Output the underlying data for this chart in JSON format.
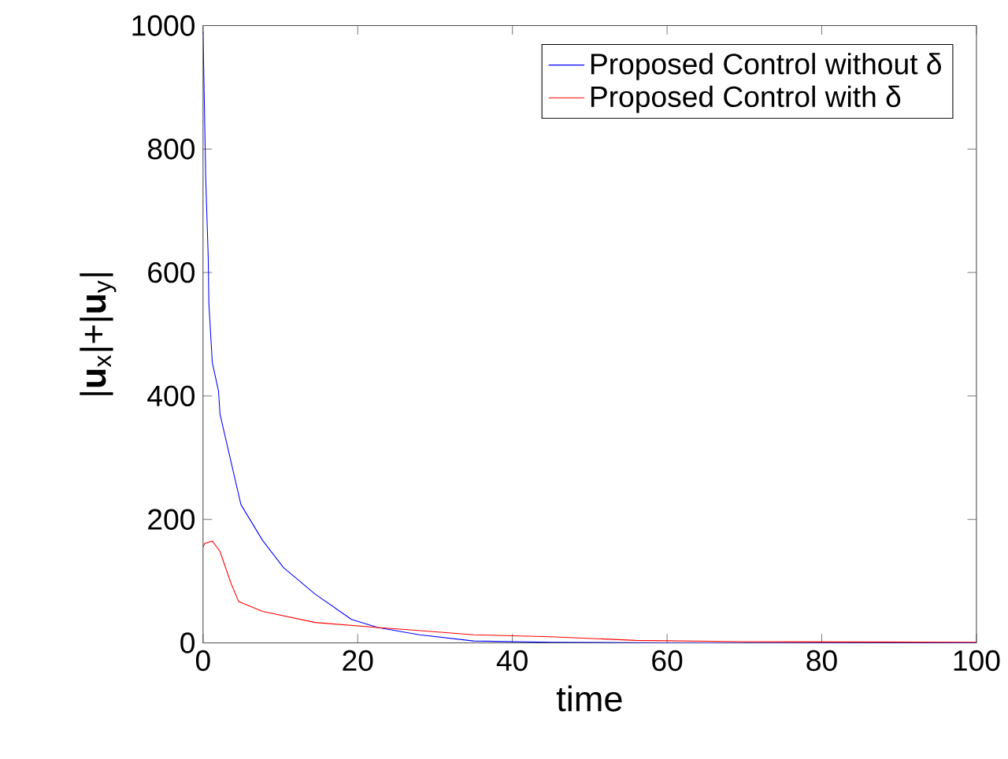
{
  "chart_data": {
    "type": "line",
    "xlabel": "time",
    "ylabel": "|**u**$_{x}$|+|**u**$_{y}$|",
    "xlim": [
      0,
      100
    ],
    "ylim": [
      0,
      1000
    ],
    "xticks": [
      0,
      20,
      40,
      60,
      80,
      100
    ],
    "yticks": [
      0,
      200,
      400,
      600,
      800,
      1000
    ],
    "legend": "top right",
    "grid": false,
    "series": [
      {
        "name": "Proposed Control without δ",
        "color": "#0000ff",
        "x": [
          0,
          0.35,
          0.67,
          0.75,
          1.2,
          2,
          2.2,
          4.9,
          7.7,
          10.4,
          14.5,
          19.2,
          22.6,
          28,
          35,
          45,
          60,
          80,
          100
        ],
        "values": [
          990,
          752,
          625,
          551,
          454,
          408,
          370,
          224,
          166,
          122,
          79,
          38,
          25,
          13,
          3,
          1,
          0,
          0,
          0
        ]
      },
      {
        "name": "Proposed Control with δ",
        "color": "#ff0000",
        "x": [
          0,
          0.2,
          1.2,
          2.2,
          3.6,
          4.6,
          7.7,
          14.5,
          22.6,
          35,
          45,
          56,
          70,
          100
        ],
        "values": [
          155,
          161,
          165,
          148,
          97,
          67,
          51,
          33,
          25,
          13,
          10,
          4,
          2,
          1
        ]
      }
    ]
  }
}
